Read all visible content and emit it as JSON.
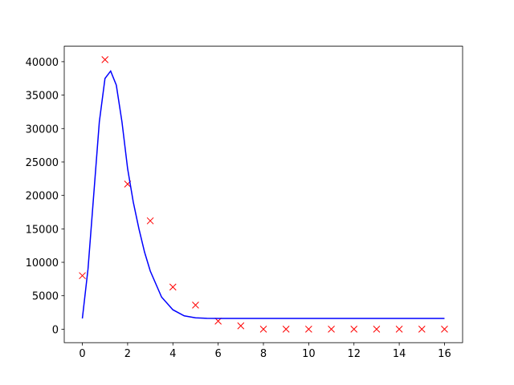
{
  "chart_data": {
    "type": "combo",
    "xlim": [
      -0.8,
      16.8
    ],
    "xticks": [
      0,
      2,
      4,
      6,
      8,
      10,
      12,
      14,
      16
    ],
    "ylim": [
      -2015,
      42315
    ],
    "yticks": [
      0,
      5000,
      10000,
      15000,
      20000,
      25000,
      30000,
      35000,
      40000
    ],
    "series": [
      {
        "type": "scatter",
        "marker": "x",
        "color": "#ff0000",
        "x": [
          0,
          1,
          2,
          3,
          4,
          5,
          6,
          7,
          8,
          9,
          10,
          11,
          12,
          13,
          14,
          15,
          16
        ],
        "values": [
          8000,
          40300,
          21700,
          16200,
          6300,
          3600,
          1200,
          500,
          0,
          0,
          0,
          0,
          0,
          0,
          0,
          0,
          0
        ]
      },
      {
        "type": "line",
        "color": "#0000ff",
        "x": [
          0,
          0.25,
          0.5,
          0.75,
          1.0,
          1.25,
          1.5,
          1.75,
          2.0,
          2.25,
          2.5,
          2.75,
          3.0,
          3.5,
          4.0,
          4.5,
          5.0,
          5.5,
          6,
          16
        ],
        "values": [
          1600,
          9000,
          20000,
          31000,
          37500,
          38600,
          36500,
          31000,
          24000,
          19000,
          15000,
          11500,
          8700,
          4800,
          2900,
          2000,
          1700,
          1620,
          1600,
          1600
        ]
      }
    ]
  }
}
